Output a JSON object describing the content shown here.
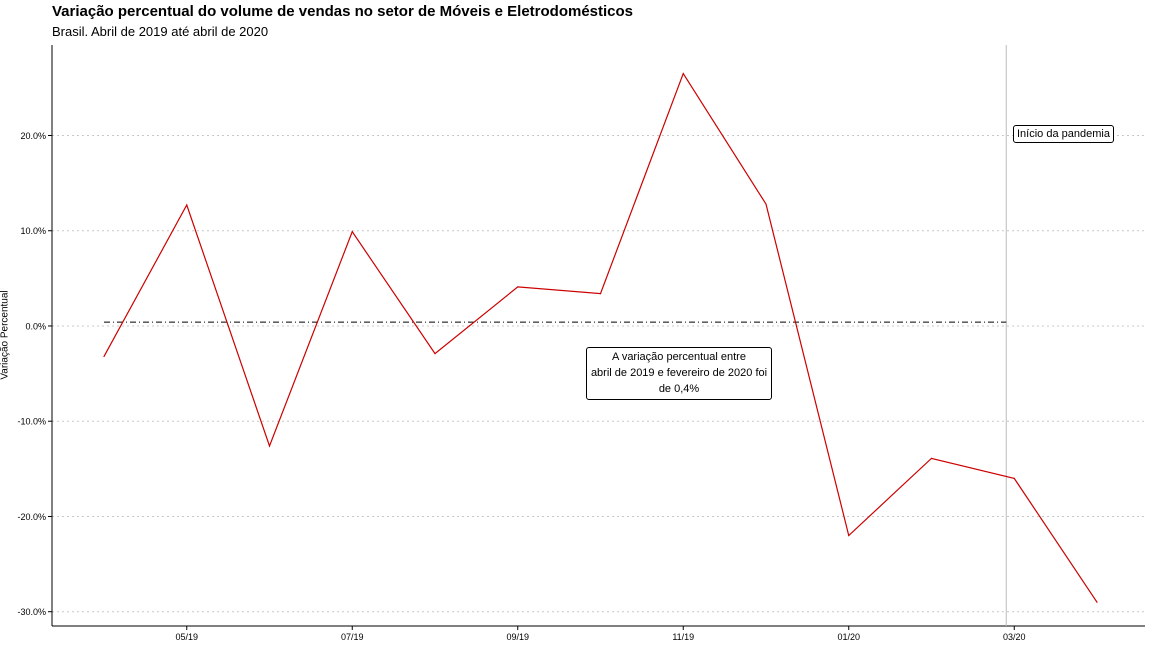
{
  "chart_data": {
    "type": "line",
    "title": "Variação percentual do volume de vendas no setor de Móveis e Eletrodomésticos",
    "subtitle": "Brasil. Abril de 2019 até abril de 2020",
    "xlabel": "",
    "ylabel": "Variação Percentual",
    "x": [
      "04/19",
      "05/19",
      "06/19",
      "07/19",
      "08/19",
      "09/19",
      "10/19",
      "11/19",
      "12/19",
      "01/20",
      "02/20",
      "03/20",
      "04/20"
    ],
    "x_tick_labels": [
      "05/19",
      "07/19",
      "09/19",
      "11/19",
      "01/20",
      "03/20"
    ],
    "y_tick_labels": [
      "20.0%",
      "10.0%",
      "0.0%",
      "-10.0%",
      "-20.0%",
      "-30.0%"
    ],
    "y_ticks": [
      20,
      10,
      0,
      -10,
      -20,
      -30
    ],
    "series": [
      {
        "values": [
          -3.2,
          12.7,
          -12.6,
          9.9,
          -2.9,
          4.1,
          3.4,
          26.5,
          12.8,
          -22.0,
          -13.9,
          -16.0,
          -29.0
        ],
        "color": "#cc0000"
      }
    ],
    "ylim": [
      -31.5,
      29.5
    ],
    "grid": "horizontal dotted",
    "reference_line": {
      "y": 0.4,
      "from": "04/19",
      "to": "03/20",
      "style": "dashdot"
    },
    "vertical_line": {
      "x": "03/20",
      "color": "#bbbbbb"
    },
    "annotations": {
      "note_lines": [
        "A variação percentual entre",
        "abril de 2019 e fevereiro de 2020 foi",
        "de 0,4%"
      ],
      "pandemic": "Início da pandemia"
    }
  }
}
